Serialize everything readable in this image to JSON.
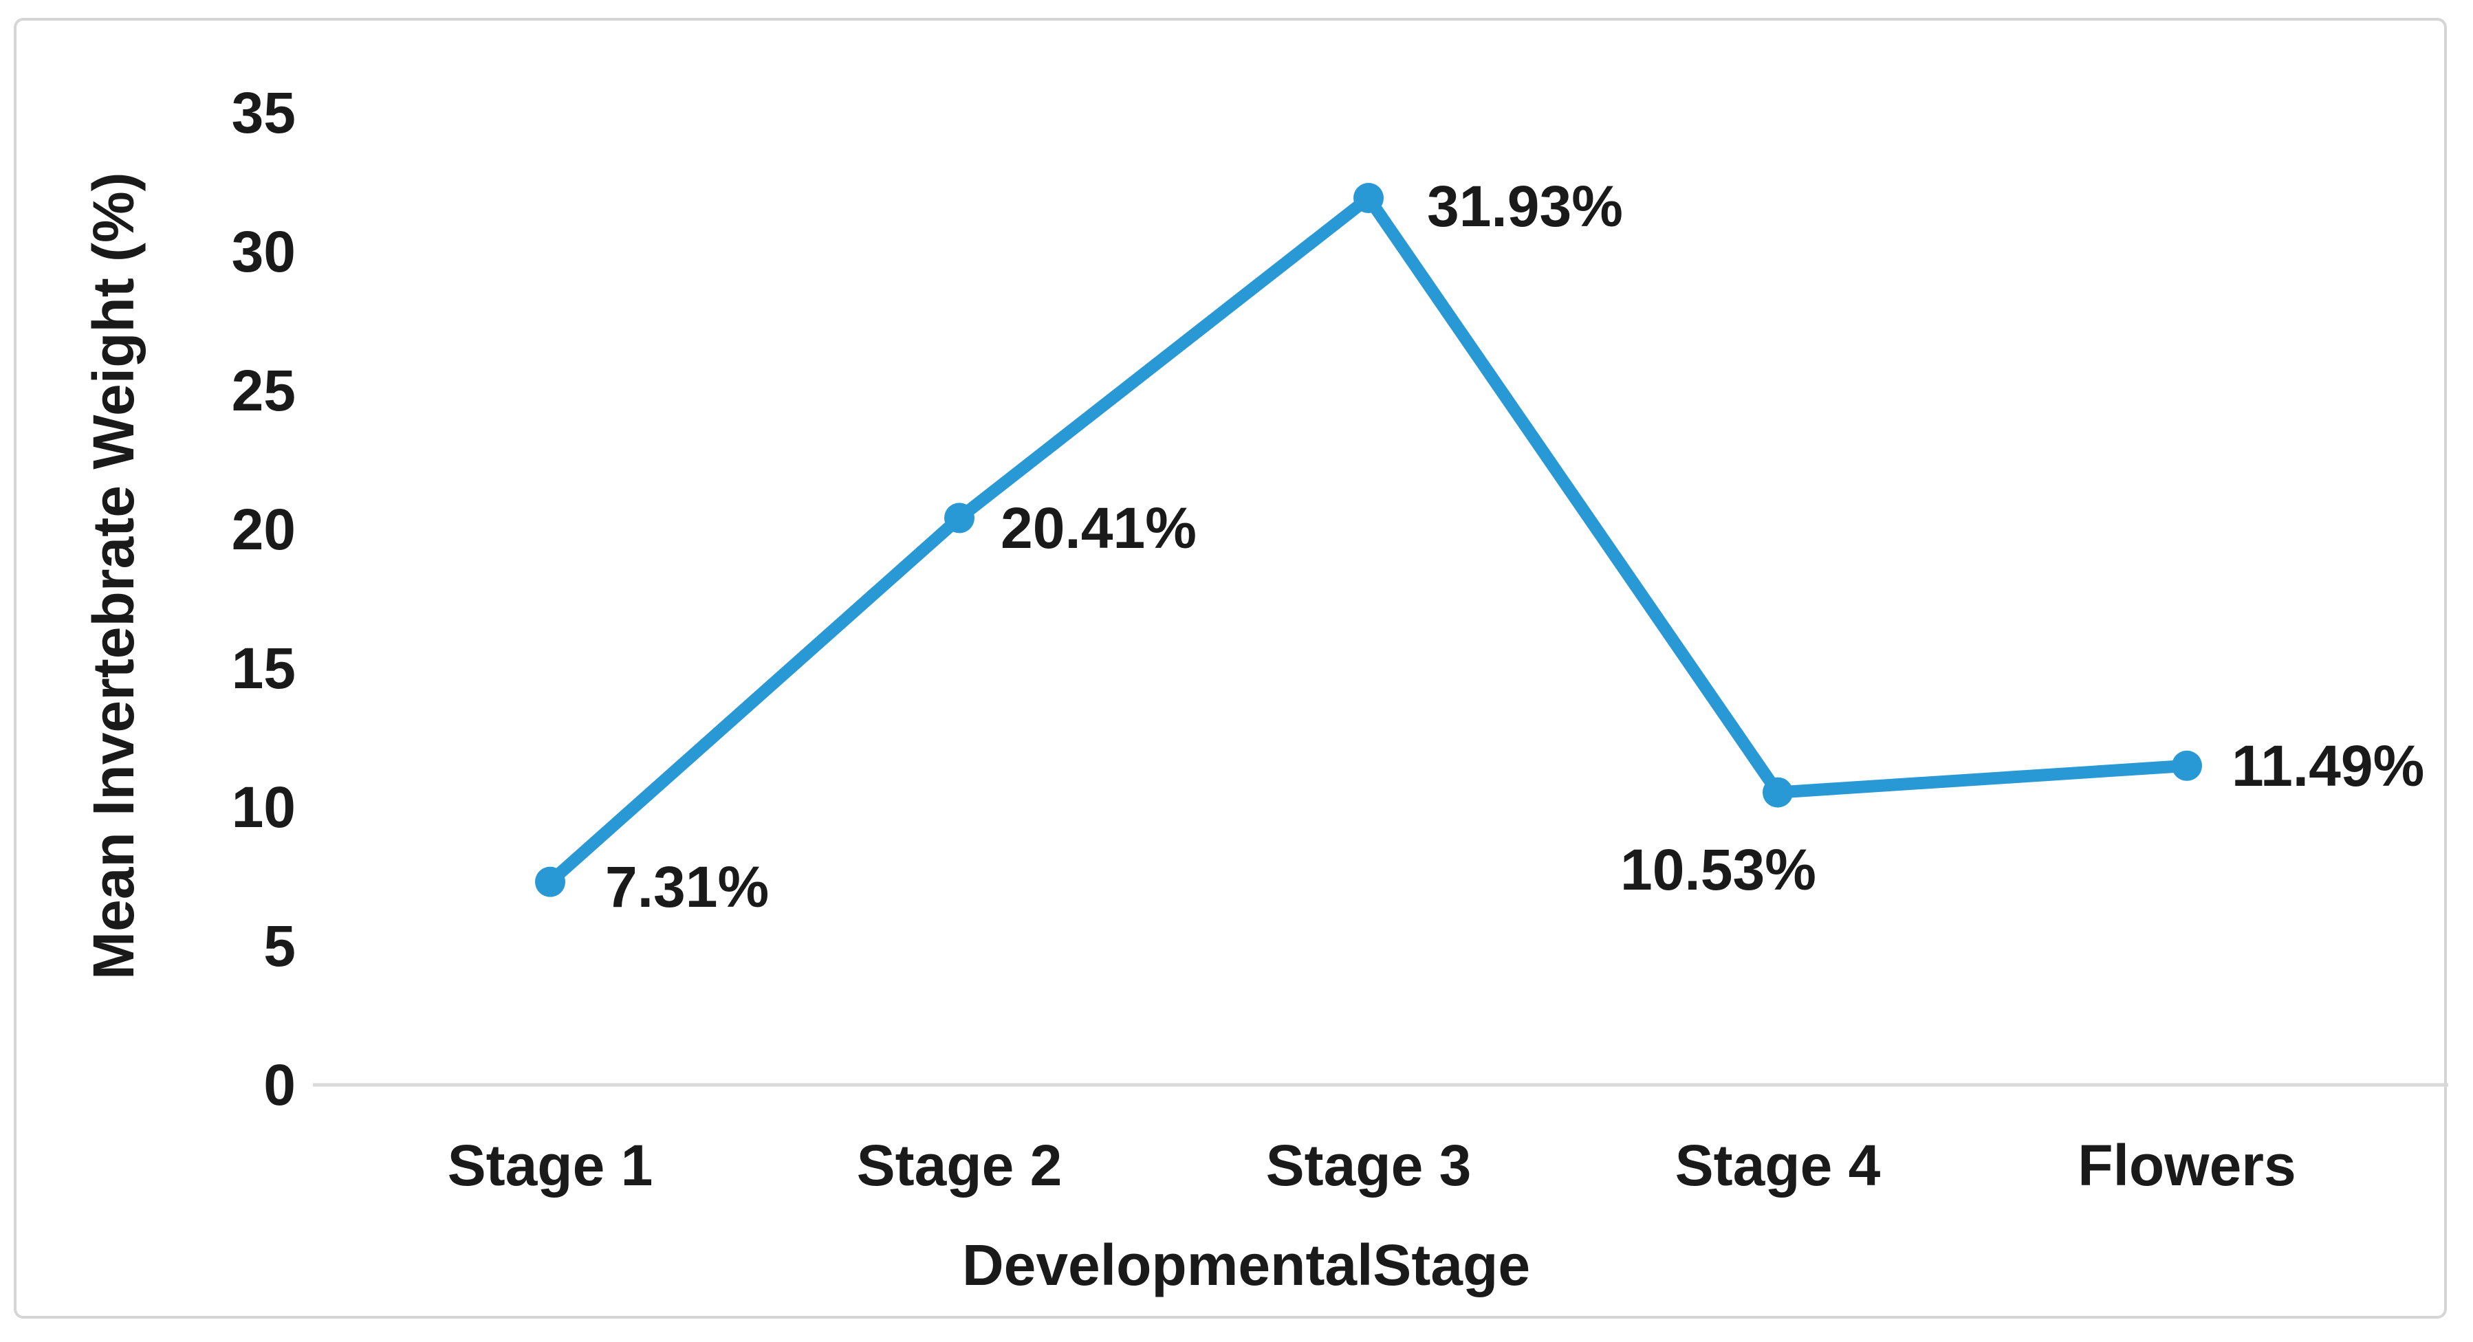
{
  "figure": {
    "background_color": "#ffffff",
    "border_color": "#d6d6d6"
  },
  "chart_data": {
    "type": "line",
    "title": "",
    "xlabel": "Developmental Stage",
    "ylabel": "Mean Invertebrate Weight (%)",
    "categories": [
      "Stage 1",
      "Stage 2",
      "Stage 3",
      "Stage 4",
      "Flowers"
    ],
    "values": [
      7.31,
      20.41,
      31.93,
      10.53,
      11.49
    ],
    "point_labels": [
      "7.31%",
      "20.41%",
      "31.93%",
      "10.53%",
      "11.49%"
    ],
    "yticks": [
      35,
      30,
      25,
      20,
      15,
      10,
      5,
      0
    ],
    "ytick_labels": [
      "35",
      "30",
      "25",
      "20",
      "15",
      "10",
      "5",
      "0"
    ],
    "ylim": [
      0,
      35
    ],
    "grid": "off",
    "legend": "none",
    "marker": "circle",
    "line_color": "#2999d6",
    "axis_line_color": "#d9d9d9",
    "text_color": "#1a1a1a"
  }
}
